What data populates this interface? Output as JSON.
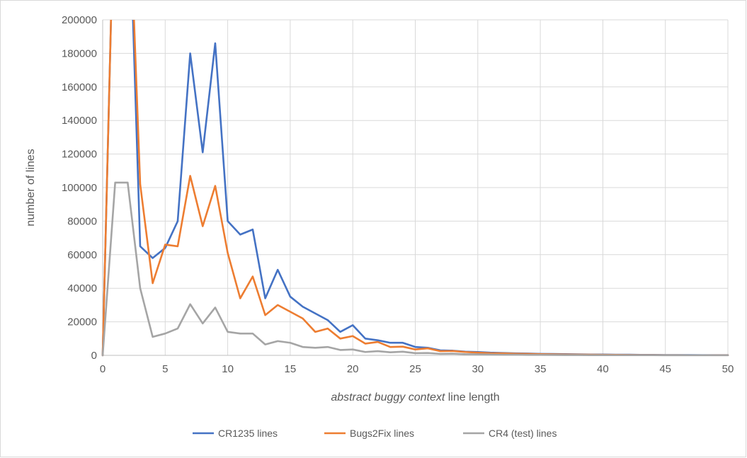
{
  "chart_data": {
    "type": "line",
    "title": "",
    "xlabel_italic": "abstract buggy context",
    "xlabel_rest": " line length",
    "ylabel": "number of lines",
    "xlim": [
      0,
      50
    ],
    "ylim": [
      0,
      200000
    ],
    "x_ticks": [
      "0",
      "5",
      "10",
      "15",
      "20",
      "25",
      "30",
      "35",
      "40",
      "45",
      "50"
    ],
    "y_ticks": [
      "0",
      "20000",
      "40000",
      "60000",
      "80000",
      "100000",
      "120000",
      "140000",
      "160000",
      "180000",
      "200000"
    ],
    "grid": true,
    "legend_position": "bottom",
    "x": [
      0,
      1,
      2,
      3,
      4,
      5,
      6,
      7,
      8,
      9,
      10,
      11,
      12,
      13,
      14,
      15,
      16,
      17,
      18,
      19,
      20,
      21,
      22,
      23,
      24,
      25,
      26,
      27,
      28,
      29,
      30,
      31,
      32,
      33,
      34,
      35,
      36,
      37,
      38,
      39,
      40,
      41,
      42,
      43,
      44,
      45,
      46,
      47,
      48,
      49,
      50
    ],
    "series": [
      {
        "name": "CR1235 lines",
        "color": "#4472c4",
        "values": [
          0,
          300000,
          300000,
          65000,
          58000,
          64000,
          80000,
          180000,
          121000,
          186000,
          80000,
          72000,
          75000,
          34000,
          51000,
          35000,
          29000,
          25000,
          21000,
          14000,
          18000,
          10000,
          9000,
          7500,
          7500,
          5000,
          4500,
          3000,
          2800,
          2200,
          2000,
          1600,
          1400,
          1200,
          1100,
          900,
          800,
          700,
          600,
          500,
          500,
          400,
          400,
          300,
          300,
          200,
          200,
          200,
          150,
          150,
          150
        ]
      },
      {
        "name": "Bugs2Fix lines",
        "color": "#ed7d31",
        "values": [
          0,
          300000,
          300000,
          102000,
          43000,
          66000,
          65000,
          107000,
          77000,
          101000,
          61000,
          34000,
          47000,
          24000,
          30000,
          26000,
          22000,
          14000,
          16000,
          10000,
          11500,
          7000,
          8000,
          5000,
          5200,
          3500,
          4200,
          2500,
          2600,
          2000,
          1600,
          1300,
          1200,
          1000,
          900,
          700,
          600,
          500,
          450,
          400,
          350,
          300,
          250,
          200,
          200,
          150,
          150,
          100,
          100,
          100,
          100
        ]
      },
      {
        "name": "CR4 (test) lines",
        "color": "#a5a5a5",
        "values": [
          0,
          103000,
          103000,
          40000,
          11000,
          13000,
          16000,
          30500,
          19000,
          28500,
          14000,
          13000,
          13000,
          6500,
          8500,
          7500,
          5000,
          4500,
          5000,
          3200,
          3500,
          2000,
          2500,
          1800,
          2200,
          1300,
          1400,
          900,
          1000,
          700,
          600,
          500,
          400,
          400,
          300,
          300,
          250,
          200,
          200,
          150,
          150,
          100,
          100,
          100,
          100,
          80,
          80,
          60,
          60,
          50,
          50
        ]
      }
    ]
  }
}
